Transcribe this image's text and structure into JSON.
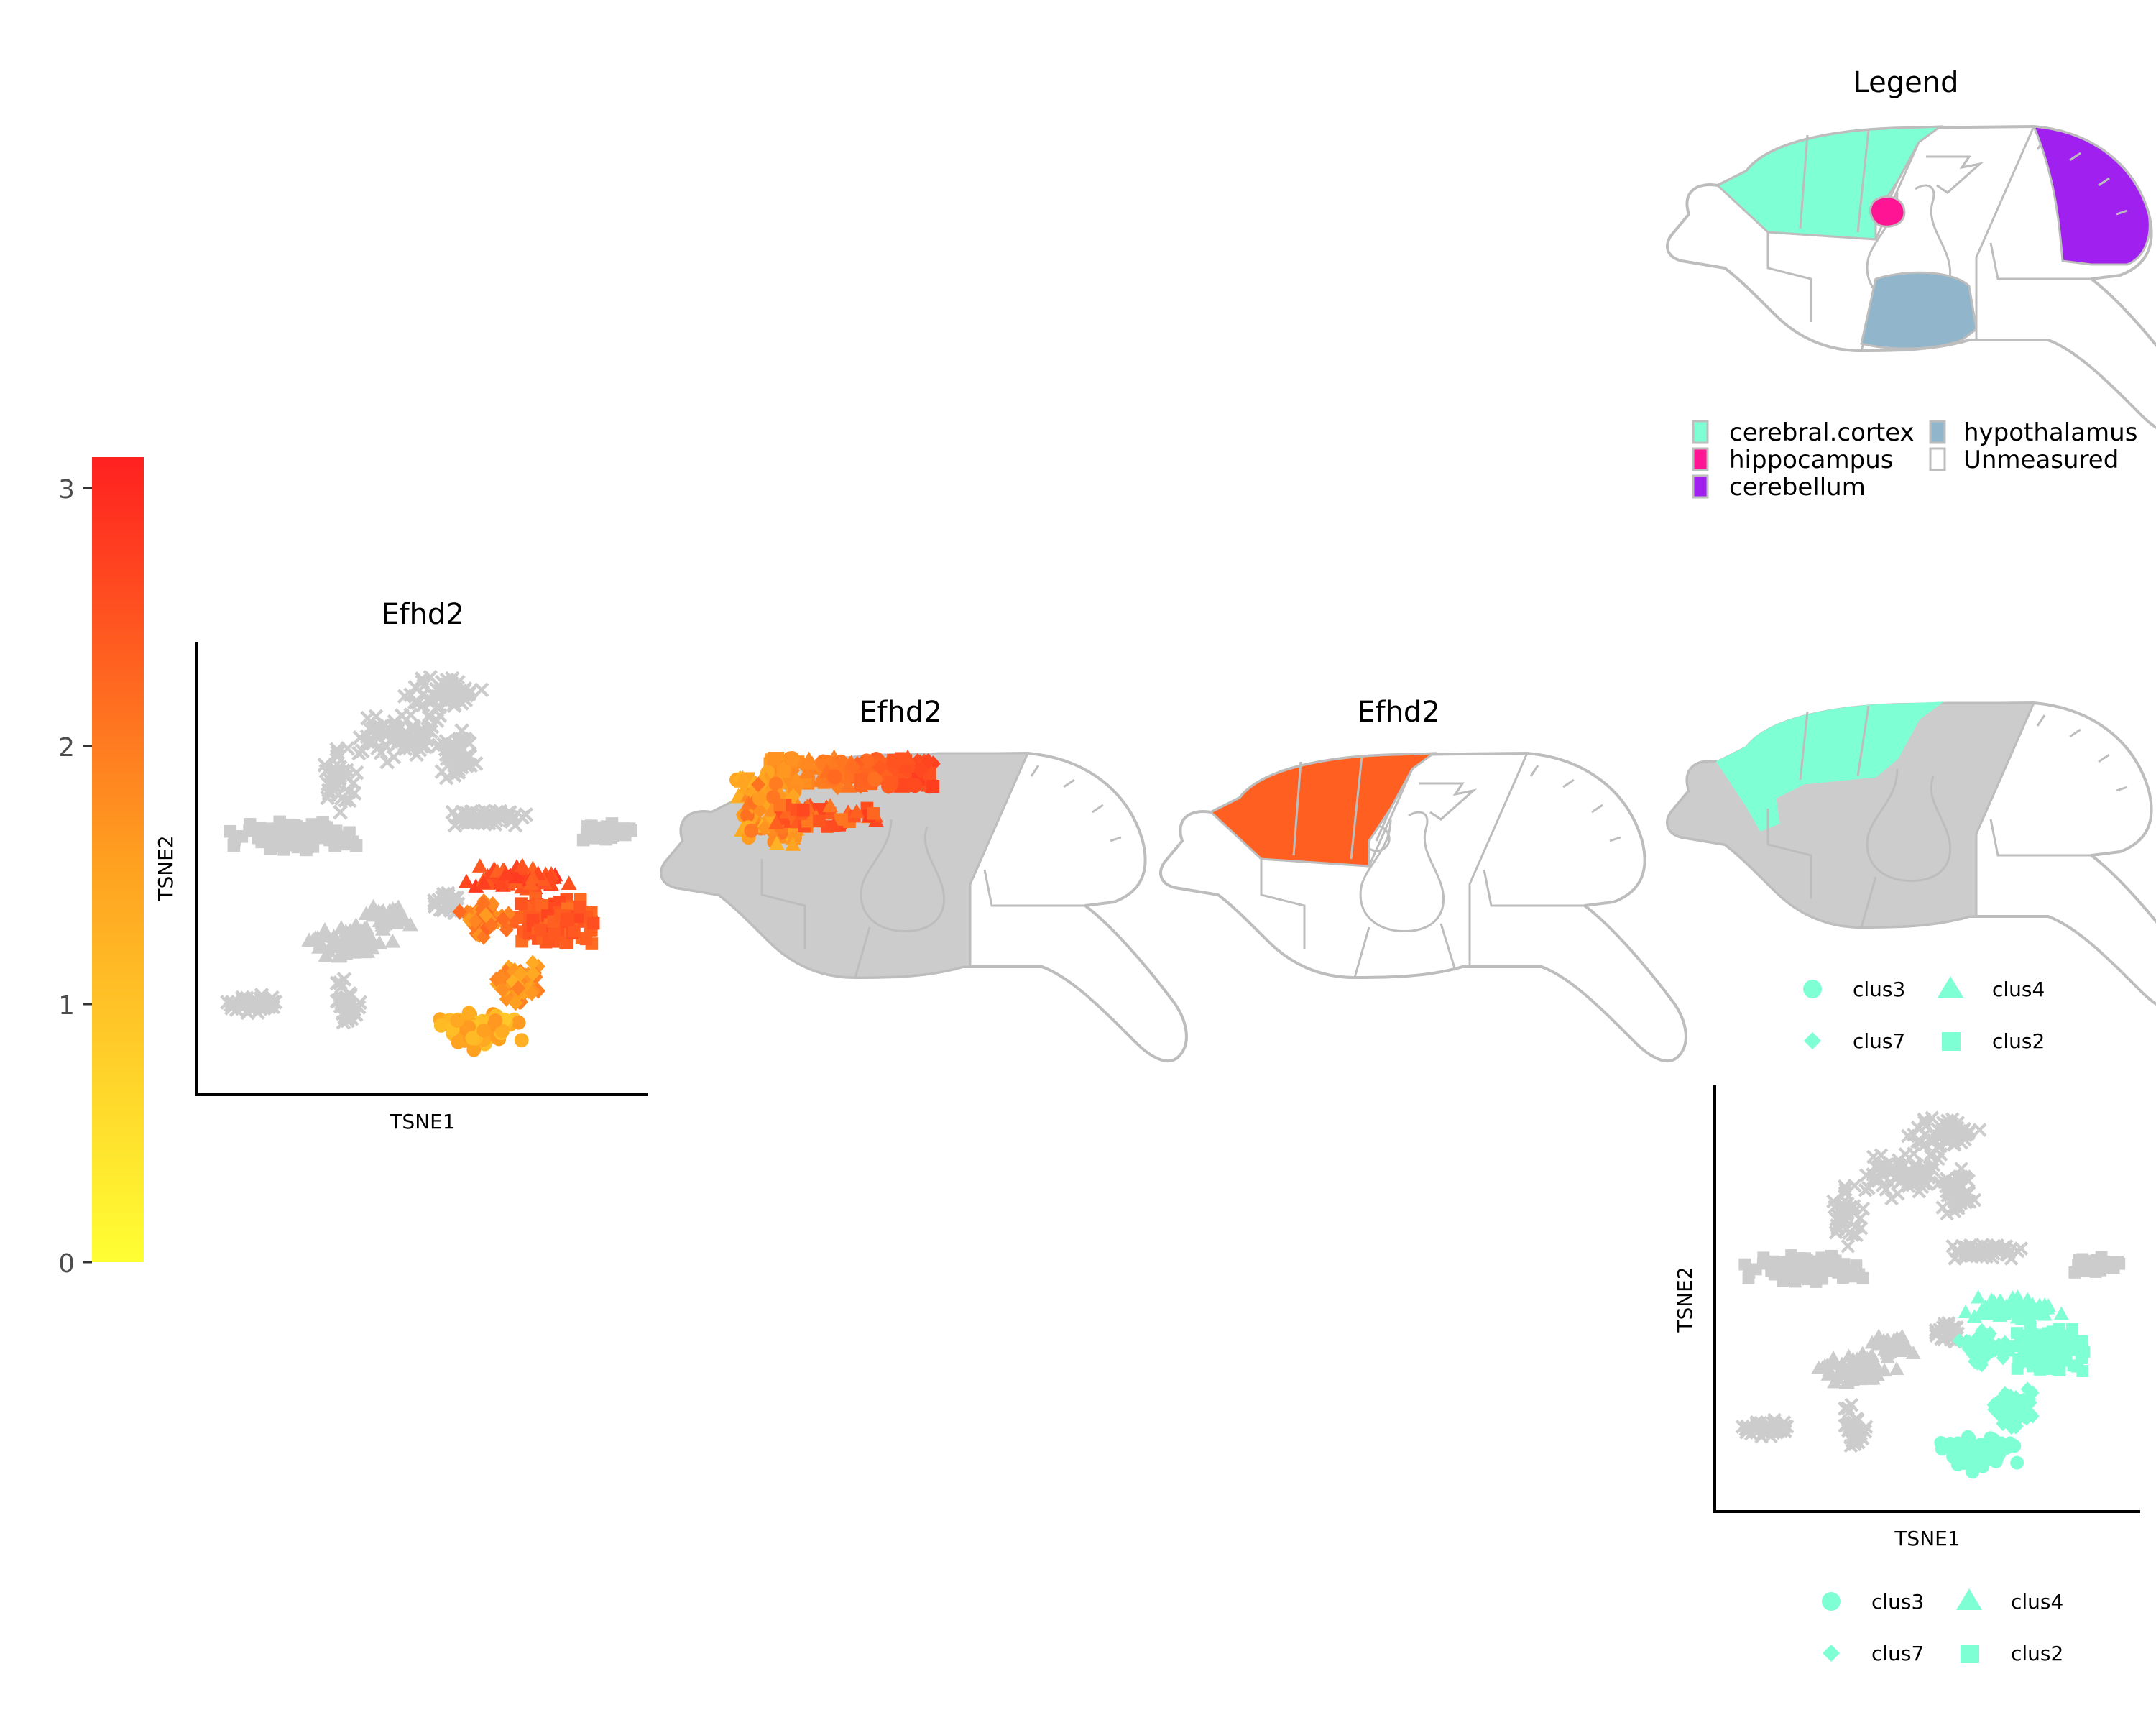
{
  "colors": {
    "low": "#ffff33",
    "high": "#ff2020",
    "unmeasured": "#cccccc",
    "cortex": "#7fffd4",
    "hippocampus": "#ff1493",
    "cerebellum": "#a020f0",
    "hypothalamus": "#91b5cb",
    "outline": "#bdbdbd"
  },
  "colorbar": {
    "ticks": [
      "0",
      "1",
      "2",
      "3"
    ],
    "min": 0,
    "max": 3.12
  },
  "panels": {
    "tsne_expression": {
      "title": "Efhd2",
      "xlabel": "TSNE1",
      "ylabel": "TSNE2"
    },
    "brain_cells": {
      "title": "Efhd2"
    },
    "brain_region": {
      "title": "Efhd2",
      "region_value": 2.35
    },
    "legend": {
      "title": "Legend",
      "items": [
        {
          "label": "cerebral.cortex",
          "color": "#7fffd4"
        },
        {
          "label": "hippocampus",
          "color": "#ff1493"
        },
        {
          "label": "cerebellum",
          "color": "#a020f0"
        },
        {
          "label": "hypothalamus",
          "color": "#91b5cb"
        },
        {
          "label": "Unmeasured",
          "color": "#ffffff"
        }
      ]
    },
    "cluster_legend_1": [
      "clus3",
      "clus4",
      "clus7",
      "clus2"
    ],
    "cluster_legend_2": [
      "clus3",
      "clus4",
      "clus7",
      "clus2"
    ],
    "tsne_clusters": {
      "xlabel": "TSNE1",
      "ylabel": "TSNE2"
    }
  },
  "chart_data": [
    {
      "type": "heatmap",
      "title": "",
      "description_role": "color scale",
      "range": [
        0,
        3.12
      ],
      "ticks": [
        0,
        1,
        2,
        3
      ]
    },
    {
      "type": "scatter",
      "title": "Efhd2",
      "xlabel": "TSNE1",
      "ylabel": "TSNE2",
      "grid": false,
      "series": [
        {
          "name": "clus3",
          "shape": "circle",
          "expression_range": [
            0.8,
            1.6
          ]
        },
        {
          "name": "clus4",
          "shape": "triangle",
          "expression_range": [
            2.2,
            2.7
          ]
        },
        {
          "name": "clus7",
          "shape": "diamond",
          "expression_range": [
            1.2,
            2.0
          ]
        },
        {
          "name": "clus2",
          "shape": "square",
          "expression_range": [
            2.0,
            2.6
          ]
        }
      ]
    },
    {
      "type": "scatter",
      "title": "",
      "xlabel": "TSNE1",
      "ylabel": "TSNE2",
      "grid": false,
      "series": [
        {
          "name": "clus3",
          "shape": "circle",
          "color": "#7fffd4"
        },
        {
          "name": "clus4",
          "shape": "triangle",
          "color": "#7fffd4"
        },
        {
          "name": "clus7",
          "shape": "diamond",
          "color": "#7fffd4"
        },
        {
          "name": "clus2",
          "shape": "square",
          "color": "#7fffd4"
        }
      ]
    }
  ]
}
